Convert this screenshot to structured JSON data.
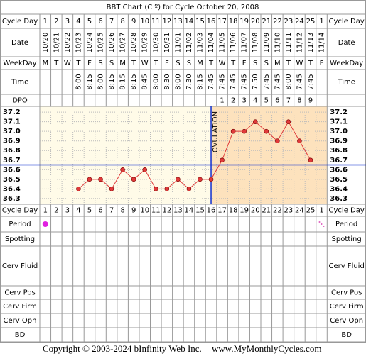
{
  "chart_data": {
    "type": "line",
    "title": "BBT Chart (C º) for Cycle October 20, 2008",
    "categories": [
      1,
      2,
      3,
      4,
      5,
      6,
      7,
      8,
      9,
      10,
      11,
      12,
      13,
      14,
      15,
      16,
      17,
      18,
      19,
      20,
      21,
      22,
      23,
      24,
      25,
      1
    ],
    "values": [
      null,
      null,
      null,
      36.4,
      36.5,
      36.5,
      36.4,
      36.6,
      36.5,
      36.6,
      36.4,
      36.4,
      36.5,
      36.4,
      36.5,
      36.5,
      36.7,
      37.0,
      37.0,
      37.1,
      37.0,
      36.9,
      37.1,
      36.9,
      36.7,
      null
    ],
    "color": "#e03a3a",
    "ylim": [
      36.24,
      37.26
    ],
    "yticks": [
      37.2,
      37.1,
      {
        "value": 37,
        "label": "37.0"
      },
      36.9,
      36.8,
      36.7,
      36.6,
      36.5,
      36.4,
      36.3
    ],
    "grid": true,
    "coverline": 36.65,
    "ovulation_day": 16,
    "ovulation_label": "OVULATION"
  },
  "table": {
    "row_labels": [
      "Cycle Day",
      "Date",
      "WeekDay",
      "Time",
      "DPO",
      "Cycle Day",
      "Period",
      "Spotting",
      "Cerv Fluid",
      "Cerv Pos",
      "Cerv Firm",
      "Cerv Opn",
      "BD"
    ],
    "dates": [
      "10/20",
      "10/21",
      "10/22",
      "10/23",
      "10/24",
      "10/25",
      "10/26",
      "10/27",
      "10/28",
      "10/29",
      "10/30",
      "10/31",
      "11/01",
      "11/02",
      "11/03",
      "11/04",
      "11/05",
      "11/06",
      "11/07",
      "11/08",
      "11/09",
      "11/10",
      "11/11",
      "11/12",
      "11/13",
      "11/14"
    ],
    "weekdays": [
      "M",
      "T",
      "W",
      "T",
      "F",
      "S",
      "S",
      "M",
      "T",
      "W",
      "T",
      "F",
      "S",
      "S",
      "M",
      "T",
      "W",
      "T",
      "F",
      "S",
      "S",
      "M",
      "T",
      "W",
      "T",
      "F"
    ],
    "times": [
      null,
      null,
      null,
      "8:00",
      "8:15",
      "8:00",
      "8:15",
      "8:15",
      "8:15",
      "8:45",
      "8:00",
      "8:30",
      "8:00",
      "7:30",
      "8:15",
      "7:45",
      "7:45",
      "7:45",
      "7:45",
      "7:50",
      "7:45",
      "7:45",
      "8:00",
      "7:45",
      "7:45",
      null
    ],
    "dpo": [
      null,
      null,
      null,
      null,
      null,
      null,
      null,
      null,
      null,
      null,
      null,
      null,
      null,
      null,
      null,
      null,
      1,
      2,
      3,
      4,
      5,
      6,
      7,
      8,
      9,
      null
    ],
    "period": [
      "heavy",
      null,
      null,
      null,
      null,
      null,
      null,
      null,
      null,
      null,
      null,
      null,
      null,
      null,
      null,
      null,
      null,
      null,
      null,
      null,
      null,
      null,
      null,
      null,
      null,
      "light"
    ]
  },
  "footer": {
    "copyright": "Copyright © 2003-2024 bInfinity Web Inc.",
    "site": "www.MyMonthlyCycles.com"
  }
}
